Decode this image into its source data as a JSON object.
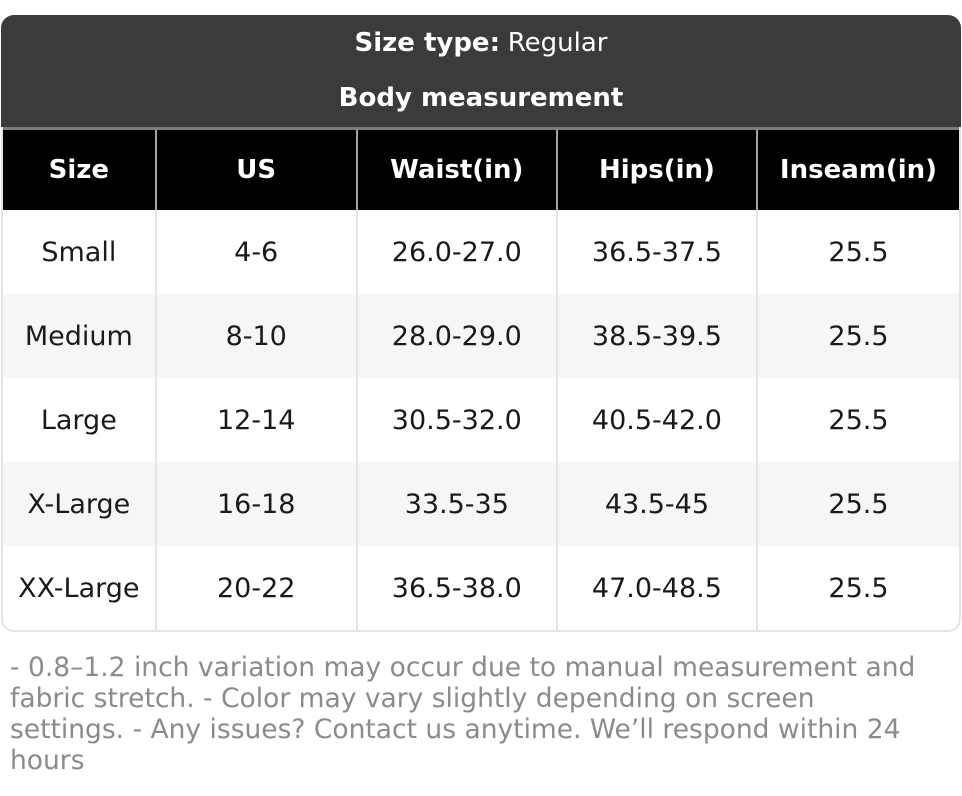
{
  "header": {
    "size_type_label": "Size type:",
    "size_type_value": "Regular",
    "subtitle": "Body measurement"
  },
  "table": {
    "columns": [
      "Size",
      "US",
      "Waist(in)",
      "Hips(in)",
      "Inseam(in)"
    ],
    "rows": [
      [
        "Small",
        "4-6",
        "26.0-27.0",
        "36.5-37.5",
        "25.5"
      ],
      [
        "Medium",
        "8-10",
        "28.0-29.0",
        "38.5-39.5",
        "25.5"
      ],
      [
        "Large",
        "12-14",
        "30.5-32.0",
        "40.5-42.0",
        "25.5"
      ],
      [
        "X-Large",
        "16-18",
        "33.5-35",
        "43.5-45",
        "25.5"
      ],
      [
        "XX-Large",
        "20-22",
        "36.5-38.0",
        "47.0-48.5",
        "25.5"
      ]
    ]
  },
  "note": "- 0.8–1.2 inch variation may occur due to manual measurement and fabric stretch. - Color may vary slightly depending on screen settings. - Any issues? Contact us anytime. We’ll respond within 24 hours",
  "colors": {
    "header_bg": "#3b3b3b",
    "table_header_bg": "#000000",
    "table_header_text": "#ffffff",
    "alt_row_bg": "#f6f6f6",
    "body_text": "#1a1a1a",
    "note_text": "#8b8b8b",
    "separator_dark": "#a3a3a3",
    "separator_light": "#e4e4e4"
  }
}
